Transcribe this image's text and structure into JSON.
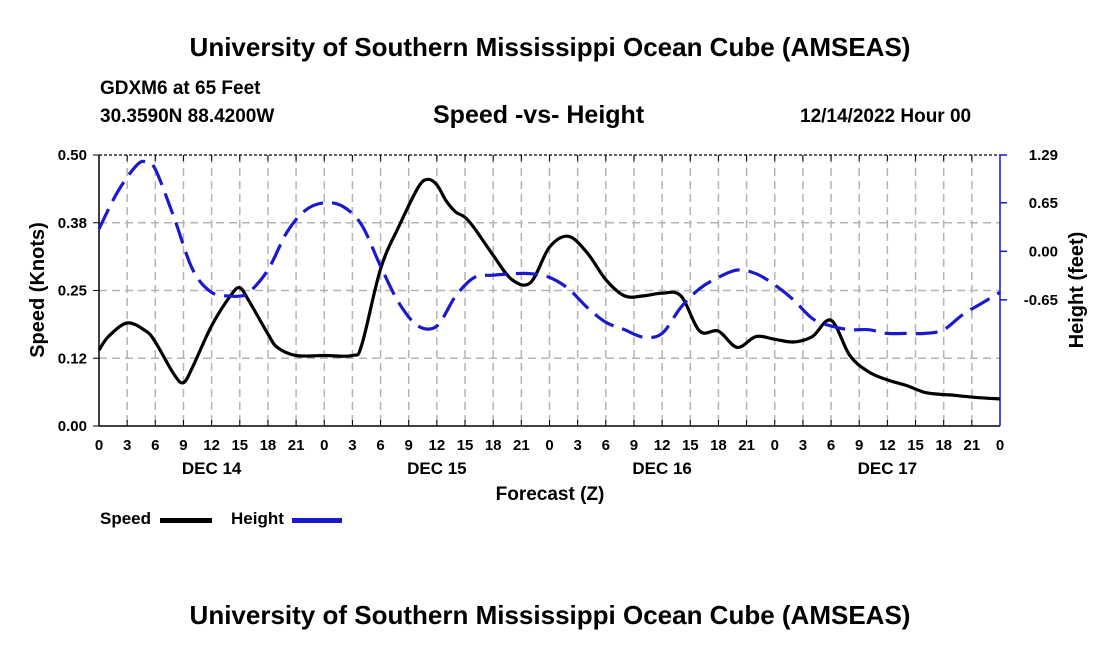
{
  "header": {
    "title": "University of Southern Mississippi Ocean Cube (AMSEAS)",
    "station": "GDXM6 at 65 Feet",
    "location": "30.3590N  88.4200W",
    "plot_title": "Speed -vs- Height",
    "datetime": "12/14/2022 Hour 00"
  },
  "footer": {
    "title": "University of Southern Mississippi Ocean Cube (AMSEAS)"
  },
  "legend": {
    "speed_label": "Speed",
    "height_label": "Height"
  },
  "colors": {
    "speed": "#000000",
    "height": "#1a1acc",
    "grid": "#b4b4b4"
  },
  "chart_data": {
    "type": "line",
    "xlabel": "Forecast (Z)",
    "ylabel_left": "Speed (Knots)",
    "ylabel_right": "Height (feet)",
    "xlim": [
      0,
      96
    ],
    "ylim_left": [
      0,
      0.5
    ],
    "ylim_right": [
      -2.34,
      1.29
    ],
    "y_ticks_left": [
      "0.50",
      "0.38",
      "0.25",
      "0.12",
      "0.00"
    ],
    "y_tick_values_left": [
      0.5,
      0.375,
      0.25,
      0.125,
      0.0
    ],
    "y_ticks_right": [
      "1.29",
      "0.65",
      "0.00",
      "-0.65"
    ],
    "y_tick_values_right": [
      1.29,
      0.65,
      0.0,
      -0.65
    ],
    "x_tick_labels": [
      "0",
      "3",
      "6",
      "9",
      "12",
      "15",
      "18",
      "21",
      "0",
      "3",
      "6",
      "9",
      "12",
      "15",
      "18",
      "21",
      "0",
      "3",
      "6",
      "9",
      "12",
      "15",
      "18",
      "21",
      "0",
      "3",
      "6",
      "9",
      "12",
      "15",
      "18",
      "21",
      "0"
    ],
    "date_labels": [
      {
        "label": "DEC 14",
        "hour": 12
      },
      {
        "label": "DEC 15",
        "hour": 36
      },
      {
        "label": "DEC 16",
        "hour": 60
      },
      {
        "label": "DEC 17",
        "hour": 84
      }
    ],
    "grid": true,
    "series": [
      {
        "name": "Speed",
        "axis": "left",
        "style": "solid",
        "x": [
          0,
          1,
          3,
          5,
          6,
          8,
          9,
          10,
          12,
          14,
          15,
          16,
          18,
          19,
          21,
          24,
          27,
          28,
          30,
          32,
          34,
          35,
          36,
          37,
          38,
          39,
          40,
          42,
          44,
          46,
          48,
          50,
          52,
          54,
          56,
          58,
          60,
          62,
          64,
          66,
          68,
          70,
          72,
          74,
          76,
          78,
          80,
          82,
          84,
          86,
          88,
          90,
          91,
          92,
          94,
          96
        ],
        "values": [
          0.14,
          0.165,
          0.19,
          0.175,
          0.155,
          0.095,
          0.08,
          0.11,
          0.185,
          0.24,
          0.255,
          0.23,
          0.17,
          0.145,
          0.13,
          0.13,
          0.13,
          0.15,
          0.29,
          0.37,
          0.44,
          0.455,
          0.445,
          0.415,
          0.395,
          0.385,
          0.365,
          0.315,
          0.27,
          0.265,
          0.33,
          0.35,
          0.32,
          0.27,
          0.24,
          0.24,
          0.245,
          0.24,
          0.175,
          0.175,
          0.145,
          0.165,
          0.16,
          0.155,
          0.165,
          0.195,
          0.13,
          0.1,
          0.085,
          0.075,
          0.062,
          0.058,
          0.057,
          0.055,
          0.052,
          0.05
        ]
      },
      {
        "name": "Height",
        "axis": "right",
        "style": "dashed",
        "x": [
          0,
          2,
          4,
          5,
          6,
          8,
          10,
          12,
          14,
          15,
          16,
          18,
          20,
          22,
          24,
          26,
          28,
          30,
          32,
          34,
          36,
          38,
          40,
          42,
          44,
          46,
          48,
          50,
          52,
          54,
          56,
          58,
          60,
          62,
          64,
          66,
          68,
          70,
          72,
          74,
          76,
          78,
          80,
          82,
          84,
          86,
          88,
          90,
          92,
          94,
          96
        ],
        "values": [
          0.3,
          0.8,
          1.15,
          1.2,
          1.1,
          0.45,
          -0.25,
          -0.55,
          -0.6,
          -0.6,
          -0.55,
          -0.25,
          0.25,
          0.55,
          0.65,
          0.6,
          0.35,
          -0.2,
          -0.7,
          -1.0,
          -1.0,
          -0.6,
          -0.35,
          -0.32,
          -0.3,
          -0.3,
          -0.35,
          -0.5,
          -0.75,
          -0.95,
          -1.05,
          -1.15,
          -1.1,
          -0.75,
          -0.5,
          -0.35,
          -0.25,
          -0.3,
          -0.45,
          -0.65,
          -0.9,
          -1.0,
          -1.05,
          -1.05,
          -1.1,
          -1.1,
          -1.1,
          -1.05,
          -0.85,
          -0.7,
          -0.55
        ]
      }
    ]
  }
}
